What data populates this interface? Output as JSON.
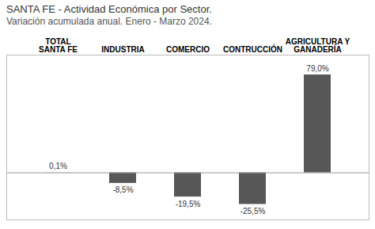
{
  "chart_data": {
    "type": "bar",
    "title": "SANTA FE - Actividad Económica por Sector.",
    "subtitle": "Variación acumulada anual. Enero - Marzo 2024.",
    "categories": [
      "TOTAL\nSANTA FE",
      "INDUSTRIA",
      "COMERCIO",
      "CONTRUCCIÓN",
      "AGRICULTURA Y\nGANADERÍA"
    ],
    "values": [
      0.1,
      -8.5,
      -19.5,
      -25.5,
      79.0
    ],
    "value_labels": [
      "0,1%",
      "-8,5%",
      "-19,5%",
      "-25,5%",
      "79,0%"
    ],
    "color": "#575757",
    "ylim": [
      -38,
      95
    ],
    "grid": false,
    "data_labels": true,
    "tick_labels": "x"
  }
}
